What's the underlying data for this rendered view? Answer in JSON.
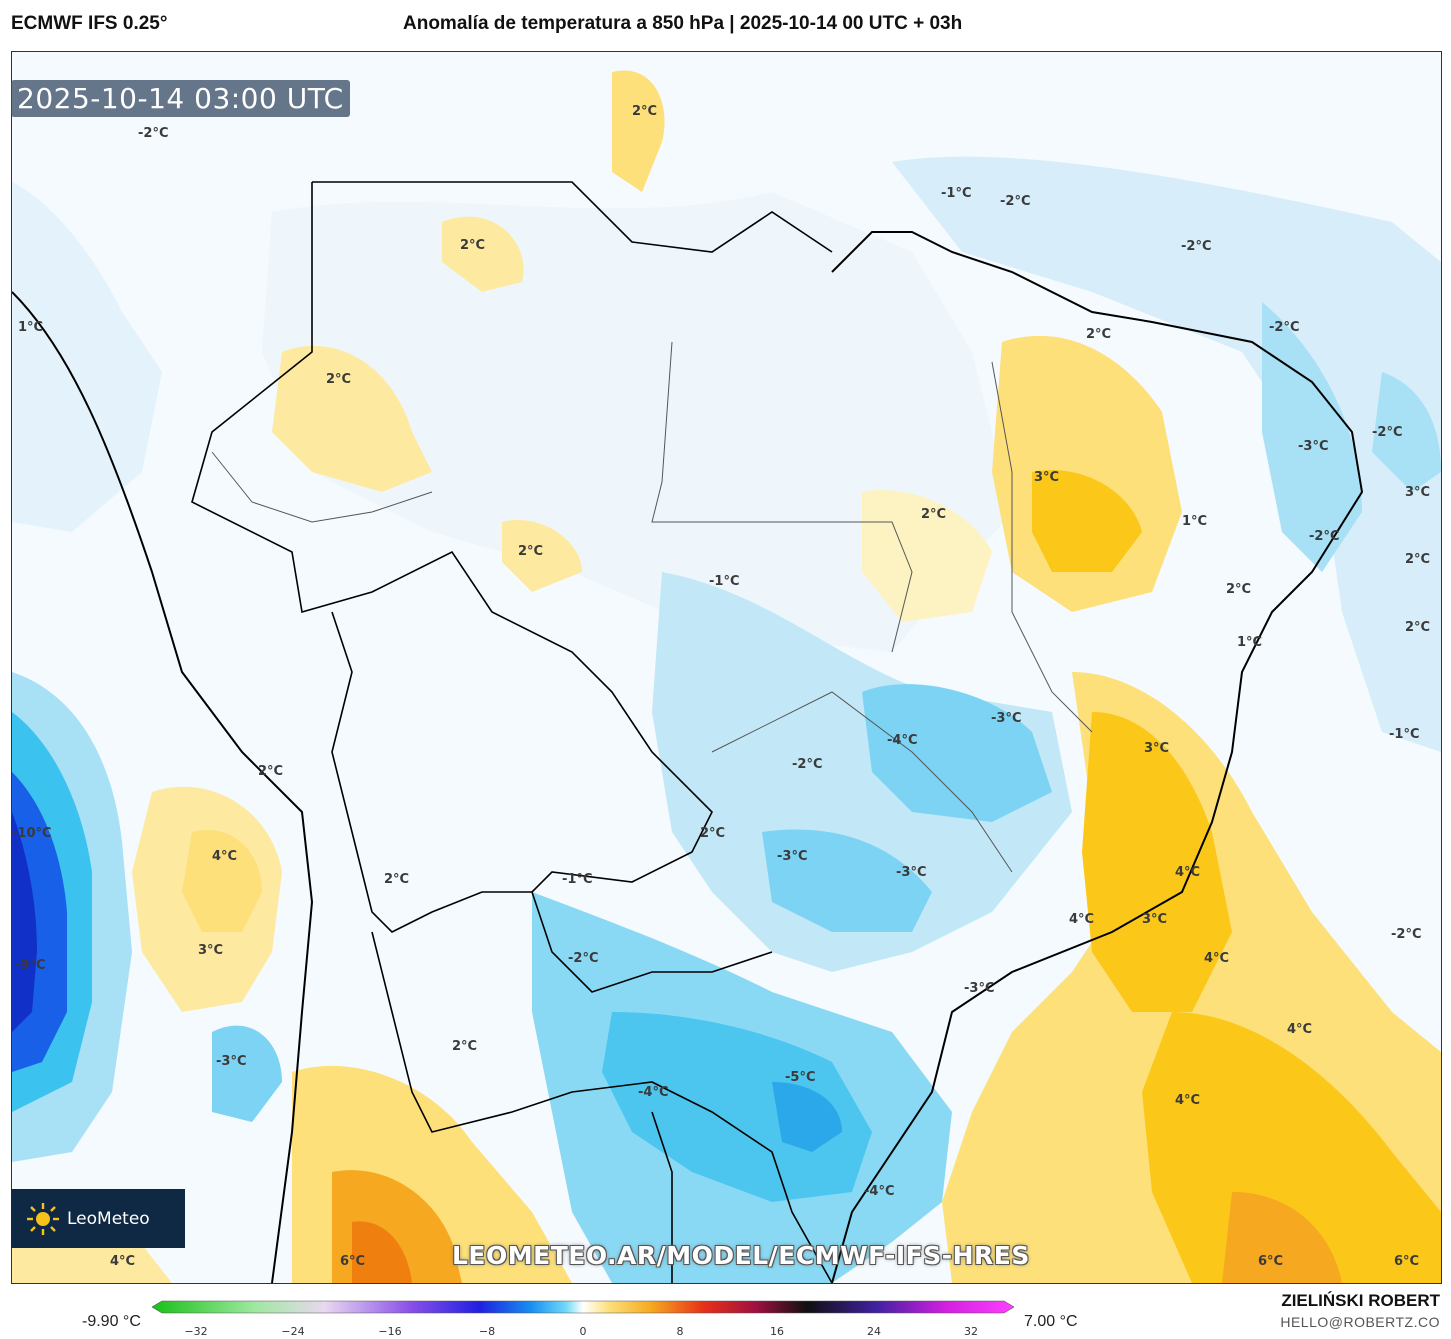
{
  "header": {
    "model": "ECMWF IFS 0.25°",
    "title": "Anomalía de temperatura a 850 hPa | 2025-10-14 00 UTC + 03h"
  },
  "timestamp": "2025-10-14 03:00 UTC",
  "logo": {
    "text": "LeoMeteo"
  },
  "watermark": "LEOMETEO.AR/MODEL/ECMWF-IFS-HRES",
  "colorbar": {
    "min_label": "-9.90 °C",
    "max_label": "7.00 °C",
    "ticks": [
      "−32",
      "−24",
      "−16",
      "−8",
      "0",
      "8",
      "16",
      "24",
      "32"
    ]
  },
  "author": {
    "name": "ZIELIŃSKI ROBERT",
    "email": "HELLO@ROBERTZ.CO"
  },
  "map_labels": [
    "-2°C",
    "2°C",
    "2°C",
    "-1°C",
    "-2°C",
    "-2°C",
    "1°C",
    "2°C",
    "2°C",
    "-2°C",
    "-2°C",
    "-3°C",
    "3°C",
    "3°C",
    "2°C",
    "1°C",
    "-2°C",
    "2°C",
    "-1°C",
    "2°C",
    "2°C",
    "1°C",
    "2°C",
    "-3°C",
    "-4°C",
    "3°C",
    "-2°C",
    "2°C",
    "-1°C",
    "-10°C",
    "4°C",
    "-3°C",
    "-3°C",
    "2°C",
    "-1°C",
    "4°C",
    "2°C",
    "3°C",
    "4°C",
    "3°C",
    "-2°C",
    "-9°C",
    "4°C",
    "-2°C",
    "-3°C",
    "4°C",
    "2°C",
    "-3°C",
    "-4°C",
    "-5°C",
    "4°C",
    "-4°C",
    "4°C",
    "6°C",
    "6°C",
    "6°C"
  ],
  "colors": {
    "sea_neutral": "#ffffff",
    "cold_light": "#e4f2fb",
    "cold_mid": "#a8e0f5",
    "cold_strong": "#3cc2ee",
    "cold_deep": "#1860e8",
    "warm_light": "#fdf3c2",
    "warm_mid": "#fde07a",
    "warm_strong": "#fbc81a",
    "warm_deep": "#f59512",
    "coast": "#000000",
    "borders": "#555555"
  }
}
